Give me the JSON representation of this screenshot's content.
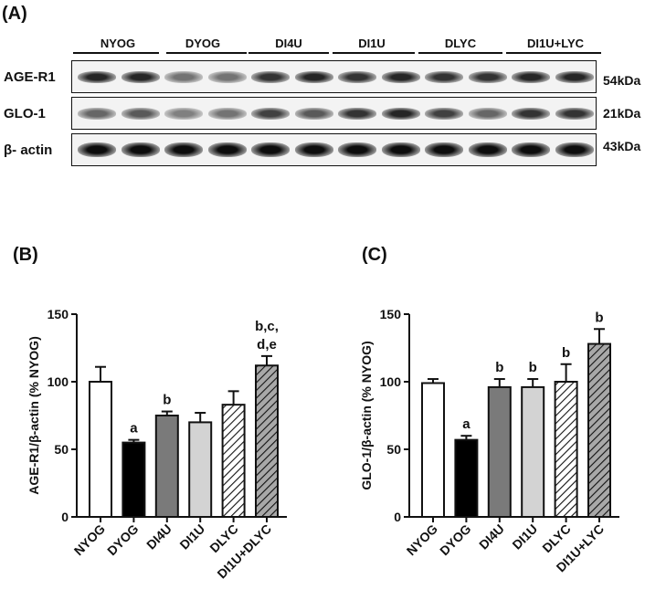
{
  "panel_labels": {
    "a": "(A)",
    "b": "(B)",
    "c": "(C)"
  },
  "blot": {
    "groups": [
      "NYOG",
      "DYOG",
      "DI4U",
      "DI1U",
      "DLYC",
      "DI1U+LYC"
    ],
    "rows": [
      {
        "label": "AGE-R1",
        "kda": "54kDa"
      },
      {
        "label": "GLO-1",
        "kda": "21kDa"
      },
      {
        "label": "β- actin",
        "kda": "43kDa"
      }
    ]
  },
  "chart_data": [
    {
      "type": "bar",
      "ylabel": "AGE-R1/β-actin (% NYOG)",
      "ylim": [
        0,
        150
      ],
      "yticks": [
        0,
        50,
        100,
        150
      ],
      "categories": [
        "NYOG",
        "DYOG",
        "DI4U",
        "DI1U",
        "DLYC",
        "DI1U+DLYC"
      ],
      "values": [
        100,
        55,
        75,
        70,
        83,
        112
      ],
      "errors": [
        11,
        2,
        3,
        7,
        10,
        7
      ],
      "fills": [
        "white",
        "black",
        "dark-gray",
        "light-gray",
        "hatch-white",
        "hatch-gray"
      ],
      "annotations": [
        "",
        "a",
        "b",
        "",
        "",
        "b,c,\nd,e"
      ]
    },
    {
      "type": "bar",
      "ylabel": "GLO-1/β-actin (% NYOG)",
      "ylim": [
        0,
        150
      ],
      "yticks": [
        0,
        50,
        100,
        150
      ],
      "categories": [
        "NYOG",
        "DYOG",
        "DI4U",
        "DI1U",
        "DLYC",
        "DI1U+LYC"
      ],
      "values": [
        99,
        57,
        96,
        96,
        100,
        128
      ],
      "errors": [
        3,
        3,
        6,
        6,
        13,
        11
      ],
      "fills": [
        "white",
        "black",
        "dark-gray",
        "light-gray",
        "hatch-white",
        "hatch-gray"
      ],
      "annotations": [
        "",
        "a",
        "b",
        "b",
        "b",
        "b"
      ]
    }
  ]
}
